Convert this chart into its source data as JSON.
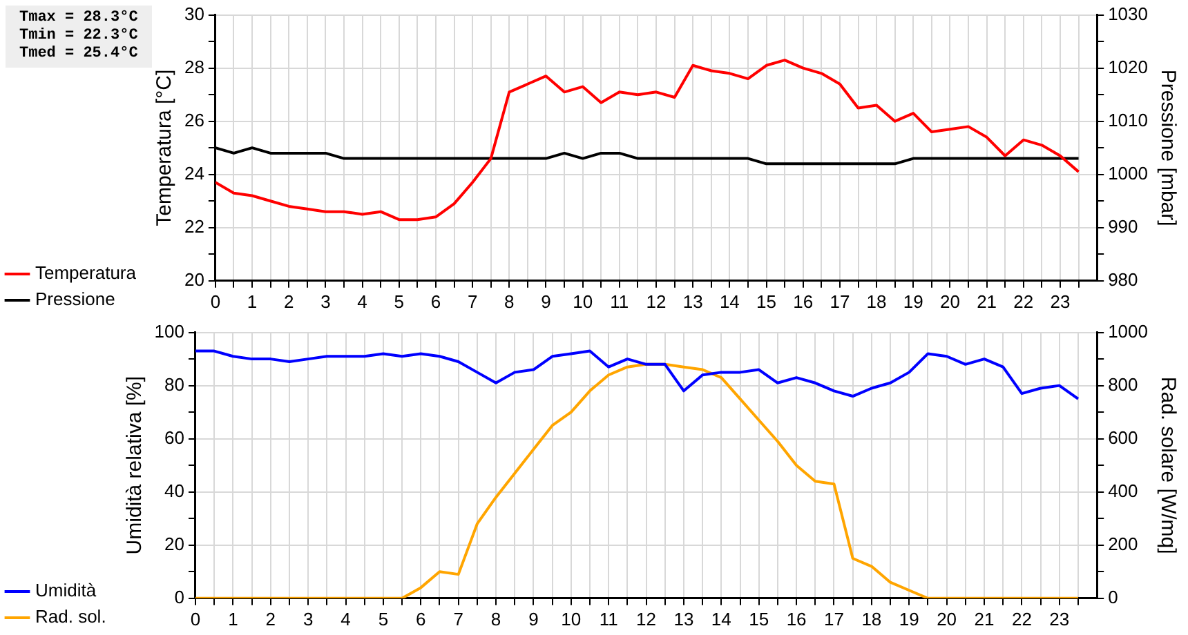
{
  "chart_data": [
    {
      "type": "line",
      "ylabel": "Temperatura [°C]",
      "y2label": "Pressione [mbar]",
      "annotations": [
        "Tmax = 28.3°C",
        "Tmin = 22.3°C",
        "Tmed = 25.4°C"
      ],
      "x": [
        0,
        0.5,
        1,
        1.5,
        2,
        2.5,
        3,
        3.5,
        4,
        4.5,
        5,
        5.5,
        6,
        6.5,
        7,
        7.5,
        8,
        8.5,
        9,
        9.5,
        10,
        10.5,
        11,
        11.5,
        12,
        12.5,
        13,
        13.5,
        14,
        14.5,
        15,
        15.5,
        16,
        16.5,
        17,
        17.5,
        18,
        18.5,
        19,
        19.5,
        20,
        20.5,
        21,
        21.5,
        22,
        22.5,
        23,
        23.5
      ],
      "series": [
        {
          "name": "Temperatura",
          "color": "#ff0000",
          "values": [
            23.7,
            23.3,
            23.2,
            23.0,
            22.8,
            22.7,
            22.6,
            22.6,
            22.5,
            22.6,
            22.3,
            22.3,
            22.4,
            22.9,
            23.7,
            24.6,
            27.1,
            27.4,
            27.7,
            27.1,
            27.3,
            26.7,
            27.1,
            27.0,
            27.1,
            26.9,
            28.1,
            27.9,
            27.8,
            27.6,
            28.1,
            28.3,
            28.0,
            27.8,
            27.4,
            26.5,
            26.6,
            26.0,
            26.3,
            25.6,
            25.7,
            25.8,
            25.4,
            24.7,
            25.3,
            25.1,
            24.7,
            24.1
          ]
        },
        {
          "name": "Pressione",
          "color": "#000000",
          "axis": "y2",
          "values": [
            1005,
            1004,
            1005,
            1004,
            1004,
            1004,
            1004,
            1003,
            1003,
            1003,
            1003,
            1003,
            1003,
            1003,
            1003,
            1003,
            1003,
            1003,
            1003,
            1004,
            1003,
            1004,
            1004,
            1003,
            1003,
            1003,
            1003,
            1003,
            1003,
            1003,
            1002,
            1002,
            1002,
            1002,
            1002,
            1002,
            1002,
            1002,
            1003,
            1003,
            1003,
            1003,
            1003,
            1003,
            1003,
            1003,
            1003,
            1003
          ]
        }
      ],
      "xlim": [
        0,
        24
      ],
      "xticks": [
        0,
        {
          "value": 0.5,
          "label": null
        },
        1,
        {
          "value": 1.5,
          "label": null
        },
        2,
        {
          "value": 2.5,
          "label": null
        },
        3,
        {
          "value": 3.5,
          "label": null
        },
        4,
        {
          "value": 4.5,
          "label": null
        },
        5,
        {
          "value": 5.5,
          "label": null
        },
        6,
        {
          "value": 6.5,
          "label": null
        },
        7,
        {
          "value": 7.5,
          "label": null
        },
        8,
        {
          "value": 8.5,
          "label": null
        },
        9,
        {
          "value": 9.5,
          "label": null
        },
        10,
        {
          "value": 10.5,
          "label": null
        },
        11,
        {
          "value": 11.5,
          "label": null
        },
        12,
        {
          "value": 12.5,
          "label": null
        },
        13,
        {
          "value": 13.5,
          "label": null
        },
        14,
        {
          "value": 14.5,
          "label": null
        },
        15,
        {
          "value": 15.5,
          "label": null
        },
        16,
        {
          "value": 16.5,
          "label": null
        },
        17,
        {
          "value": 17.5,
          "label": null
        },
        18,
        {
          "value": 18.5,
          "label": null
        },
        19,
        {
          "value": 19.5,
          "label": null
        },
        20,
        {
          "value": 20.5,
          "label": null
        },
        21,
        {
          "value": 21.5,
          "label": null
        },
        22,
        {
          "value": 22.5,
          "label": null
        },
        23,
        {
          "value": 23.5,
          "label": null
        }
      ],
      "ylim": [
        20,
        30
      ],
      "yticks": [
        20,
        {
          "value": 21,
          "label": null
        },
        22,
        {
          "value": 23,
          "label": null
        },
        24,
        {
          "value": 25,
          "label": null
        },
        26,
        {
          "value": 27,
          "label": null
        },
        28,
        {
          "value": 29,
          "label": null
        },
        30
      ],
      "y2lim": [
        980,
        1030
      ],
      "y2ticks": [
        980,
        {
          "value": 985,
          "label": null
        },
        990,
        {
          "value": 995,
          "label": null
        },
        1000,
        {
          "value": 1005,
          "label": null
        },
        1010,
        {
          "value": 1015,
          "label": null
        },
        1020,
        {
          "value": 1025,
          "label": null
        },
        1030
      ],
      "grid": true,
      "legend": "left",
      "line_style": "solid"
    },
    {
      "type": "line",
      "ylabel": "Umidità relativa [%]",
      "y2label": "Rad. solare [W/mq]",
      "x": [
        0,
        0.5,
        1,
        1.5,
        2,
        2.5,
        3,
        3.5,
        4,
        4.5,
        5,
        5.5,
        6,
        6.5,
        7,
        7.5,
        8,
        8.5,
        9,
        9.5,
        10,
        10.5,
        11,
        11.5,
        12,
        12.5,
        13,
        13.5,
        14,
        14.5,
        15,
        15.5,
        16,
        16.5,
        17,
        17.5,
        18,
        18.5,
        19,
        19.5,
        20,
        20.5,
        21,
        21.5,
        22,
        22.5,
        23,
        23.5
      ],
      "series": [
        {
          "name": "Umidità",
          "color": "#0000ff",
          "values": [
            93,
            93,
            91,
            90,
            90,
            89,
            90,
            91,
            91,
            91,
            92,
            91,
            92,
            91,
            89,
            85,
            81,
            85,
            86,
            91,
            92,
            93,
            87,
            90,
            88,
            88,
            78,
            84,
            85,
            85,
            86,
            81,
            83,
            81,
            78,
            76,
            79,
            81,
            85,
            92,
            91,
            88,
            90,
            87,
            77,
            79,
            80,
            75
          ]
        },
        {
          "name": "Rad. sol.",
          "color": "#ffa500",
          "axis": "y2",
          "values": [
            0,
            0,
            0,
            0,
            0,
            0,
            0,
            0,
            0,
            0,
            0,
            0,
            40,
            100,
            90,
            280,
            380,
            470,
            560,
            650,
            700,
            780,
            840,
            870,
            880,
            880,
            870,
            860,
            830,
            750,
            670,
            590,
            500,
            440,
            430,
            150,
            120,
            60,
            30,
            0,
            0,
            0,
            0,
            0,
            0,
            0,
            0,
            0
          ]
        }
      ],
      "xlim": [
        0,
        24
      ],
      "xticks": [
        0,
        {
          "value": 0.5,
          "label": null
        },
        1,
        {
          "value": 1.5,
          "label": null
        },
        2,
        {
          "value": 2.5,
          "label": null
        },
        3,
        {
          "value": 3.5,
          "label": null
        },
        4,
        {
          "value": 4.5,
          "label": null
        },
        5,
        {
          "value": 5.5,
          "label": null
        },
        6,
        {
          "value": 6.5,
          "label": null
        },
        7,
        {
          "value": 7.5,
          "label": null
        },
        8,
        {
          "value": 8.5,
          "label": null
        },
        9,
        {
          "value": 9.5,
          "label": null
        },
        10,
        {
          "value": 10.5,
          "label": null
        },
        11,
        {
          "value": 11.5,
          "label": null
        },
        12,
        {
          "value": 12.5,
          "label": null
        },
        13,
        {
          "value": 13.5,
          "label": null
        },
        14,
        {
          "value": 14.5,
          "label": null
        },
        15,
        {
          "value": 15.5,
          "label": null
        },
        16,
        {
          "value": 16.5,
          "label": null
        },
        17,
        {
          "value": 17.5,
          "label": null
        },
        18,
        {
          "value": 18.5,
          "label": null
        },
        19,
        {
          "value": 19.5,
          "label": null
        },
        20,
        {
          "value": 20.5,
          "label": null
        },
        21,
        {
          "value": 21.5,
          "label": null
        },
        22,
        {
          "value": 22.5,
          "label": null
        },
        23,
        {
          "value": 23.5,
          "label": null
        }
      ],
      "ylim": [
        0,
        100
      ],
      "yticks": [
        0,
        {
          "value": 10,
          "label": null
        },
        20,
        {
          "value": 30,
          "label": null
        },
        40,
        {
          "value": 50,
          "label": null
        },
        60,
        {
          "value": 70,
          "label": null
        },
        80,
        {
          "value": 90,
          "label": null
        },
        100
      ],
      "y2lim": [
        0,
        1000
      ],
      "y2ticks": [
        0,
        {
          "value": 100,
          "label": null
        },
        200,
        {
          "value": 300,
          "label": null
        },
        400,
        {
          "value": 500,
          "label": null
        },
        600,
        {
          "value": 700,
          "label": null
        },
        800,
        {
          "value": 900,
          "label": null
        },
        1000
      ],
      "grid": true,
      "legend": "left",
      "line_style": "solid"
    }
  ]
}
